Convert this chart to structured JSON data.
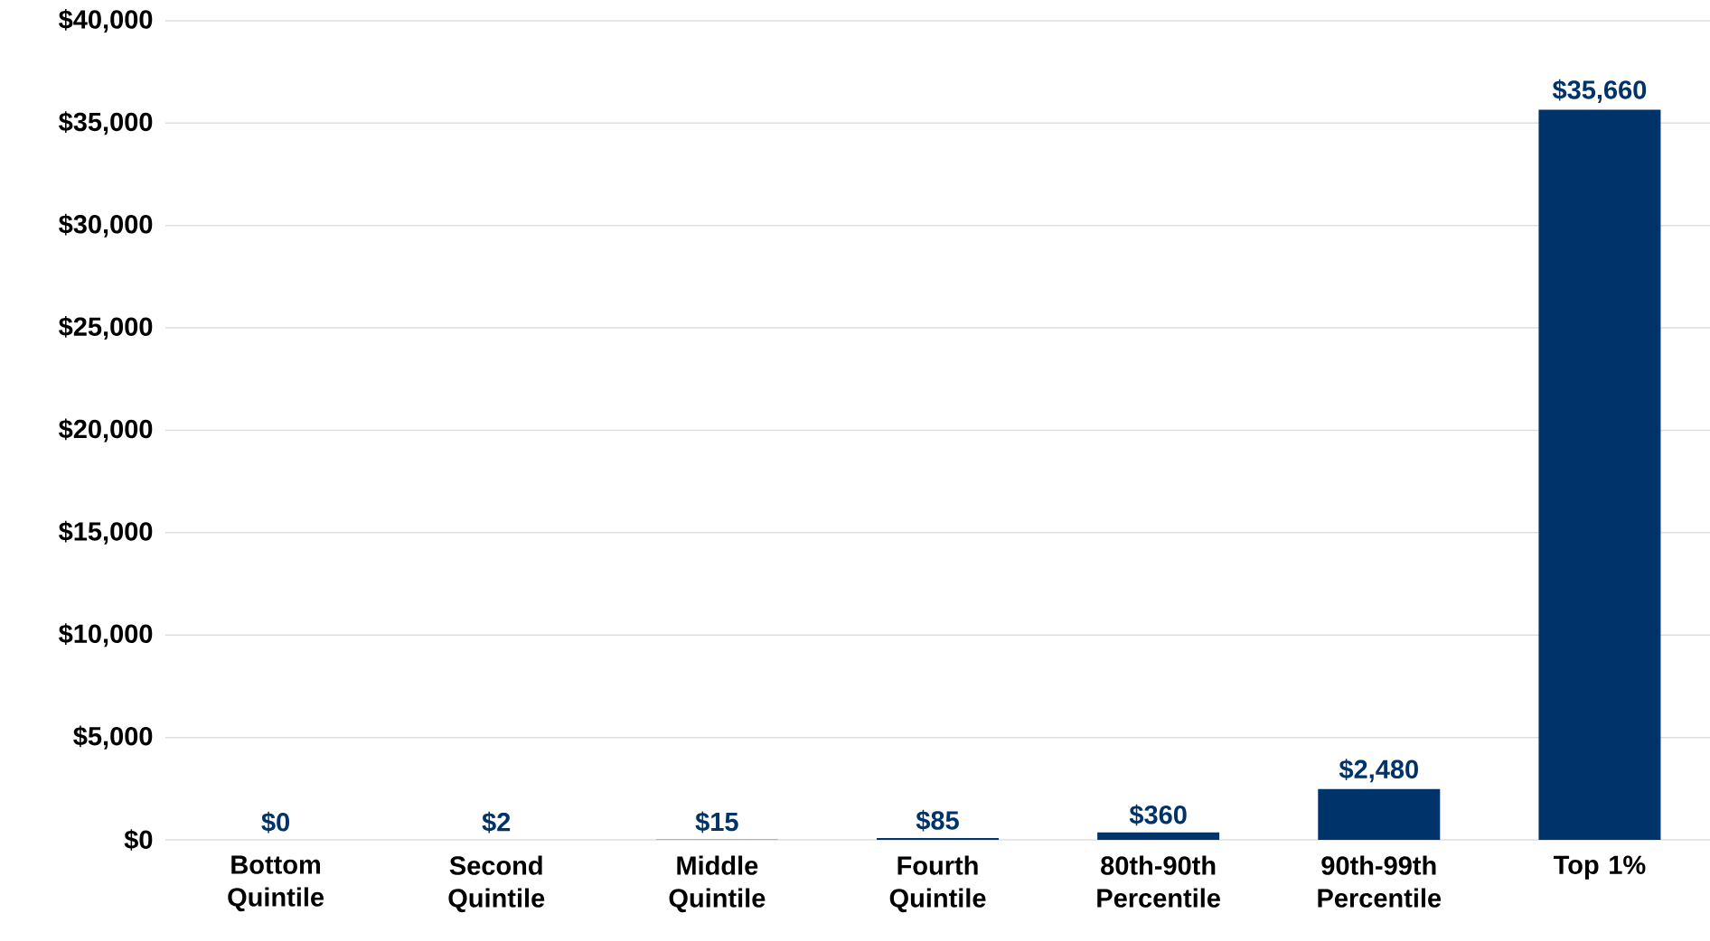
{
  "chart_data": {
    "type": "bar",
    "categories": [
      "Bottom Quintile",
      "Second Quintile",
      "Middle Quintile",
      "Fourth Quintile",
      "80th-90th Percentile",
      "90th-99th Percentile",
      "Top 1%"
    ],
    "values": [
      0,
      2,
      15,
      85,
      360,
      2480,
      35660
    ],
    "value_labels": [
      "$0",
      "$2",
      "$15",
      "$85",
      "$360",
      "$2,480",
      "$35,660"
    ],
    "color": "#003369",
    "ylim": [
      0,
      40000
    ],
    "yticks": [
      {
        "value": 0,
        "label": "$0"
      },
      {
        "value": 5000,
        "label": "$5,000"
      },
      {
        "value": 10000,
        "label": "$10,000"
      },
      {
        "value": 15000,
        "label": "$15,000"
      },
      {
        "value": 20000,
        "label": "$20,000"
      },
      {
        "value": 25000,
        "label": "$25,000"
      },
      {
        "value": 30000,
        "label": "$30,000"
      },
      {
        "value": 35000,
        "label": "$35,000"
      },
      {
        "value": 40000,
        "label": "$40,000"
      }
    ],
    "grid": "y"
  }
}
